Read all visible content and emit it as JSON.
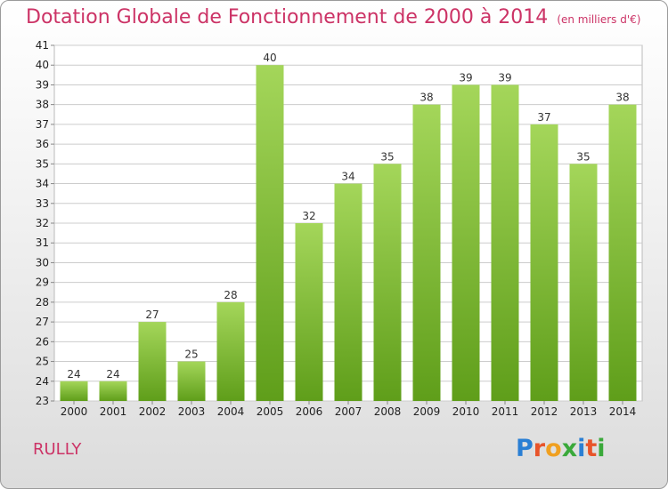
{
  "title": "Dotation Globale de Fonctionnement de 2000 à 2014",
  "unit": "(en milliers d'€)",
  "commune": "RULLY",
  "logo": {
    "letters": [
      "P",
      "r",
      "o",
      "x",
      "i",
      "t",
      "i"
    ],
    "colors": [
      "#2a7fd4",
      "#e8542a",
      "#f0a020",
      "#3aa93a",
      "#2a7fd4",
      "#e8542a",
      "#3aa93a"
    ]
  },
  "colors": {
    "title": "#cc3366",
    "bar_top": "#a4d65a",
    "bar_bottom": "#5f9e1a",
    "grid": "#cccccc"
  },
  "chart_data": {
    "type": "bar",
    "categories": [
      "2000",
      "2001",
      "2002",
      "2003",
      "2004",
      "2005",
      "2006",
      "2007",
      "2008",
      "2009",
      "2010",
      "2011",
      "2012",
      "2013",
      "2014"
    ],
    "values": [
      24,
      24,
      27,
      25,
      28,
      40,
      32,
      34,
      35,
      38,
      39,
      39,
      37,
      35,
      38
    ],
    "ylim": [
      23,
      41
    ],
    "yticks": [
      23,
      24,
      25,
      26,
      27,
      28,
      29,
      30,
      31,
      32,
      33,
      34,
      35,
      36,
      37,
      38,
      39,
      40,
      41
    ],
    "grid": true,
    "xlabel": "",
    "ylabel": ""
  }
}
